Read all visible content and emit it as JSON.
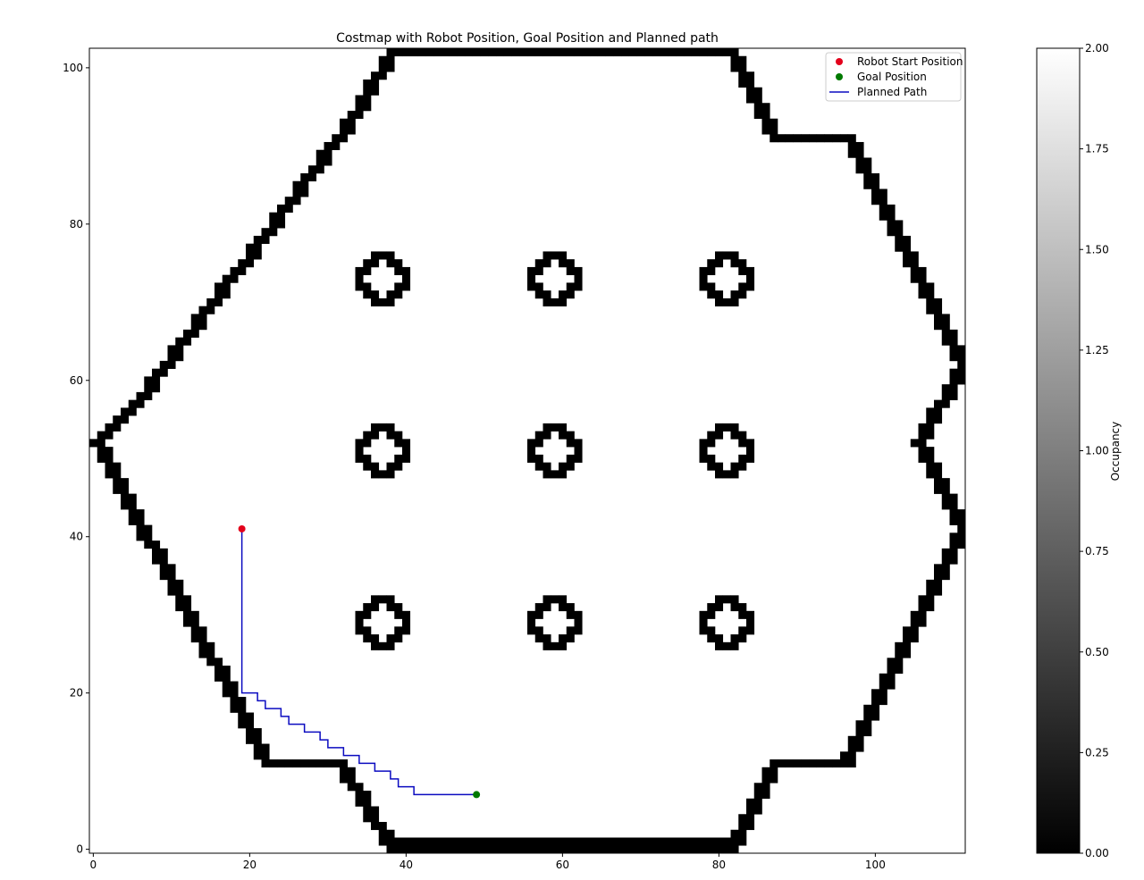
{
  "chart_data": {
    "type": "heatmap",
    "title": "Costmap with Robot Position, Goal Position and Planned path",
    "xlabel": "",
    "ylabel": "",
    "xlim": [
      -0.5,
      111.5
    ],
    "ylim": [
      -0.5,
      102.5
    ],
    "xticks": [
      0,
      20,
      40,
      60,
      80,
      100
    ],
    "yticks": [
      0,
      20,
      40,
      60,
      80,
      100
    ],
    "grid": false,
    "colormap": "gray",
    "obstacle_value": 0,
    "free_value": 2,
    "obstacle_color": "#000000",
    "free_color": "#ffffff",
    "colorbar": {
      "label": "Occupancy",
      "range": [
        0,
        2
      ],
      "ticks": [
        "0.00",
        "0.25",
        "0.50",
        "0.75",
        "1.00",
        "1.25",
        "1.50",
        "1.75",
        "2.00"
      ]
    },
    "boundary_polygon": [
      [
        0,
        52
      ],
      [
        5,
        57
      ],
      [
        31,
        91
      ],
      [
        38,
        102
      ],
      [
        81,
        102
      ],
      [
        87,
        91
      ],
      [
        96,
        91
      ],
      [
        111,
        62
      ],
      [
        105,
        52
      ],
      [
        111,
        41
      ],
      [
        96,
        11
      ],
      [
        87,
        11
      ],
      [
        81,
        0
      ],
      [
        38,
        0
      ],
      [
        31,
        11
      ],
      [
        22,
        11
      ],
      [
        0,
        52
      ]
    ],
    "obstacles": [
      {
        "cx": 37,
        "cy": 73
      },
      {
        "cx": 59,
        "cy": 73
      },
      {
        "cx": 81,
        "cy": 73
      },
      {
        "cx": 37,
        "cy": 51
      },
      {
        "cx": 59,
        "cy": 51
      },
      {
        "cx": 81,
        "cy": 51
      },
      {
        "cx": 37,
        "cy": 29
      },
      {
        "cx": 59,
        "cy": 29
      },
      {
        "cx": 81,
        "cy": 29
      }
    ],
    "series": [
      {
        "name": "Robot Start Position",
        "type": "point",
        "color": "#e3001b",
        "x": 19,
        "y": 41
      },
      {
        "name": "Goal Position",
        "type": "point",
        "color": "#007a00",
        "x": 49,
        "y": 7
      },
      {
        "name": "Planned Path",
        "type": "line",
        "color": "#0b0bc0",
        "points": [
          [
            19,
            41
          ],
          [
            19,
            20
          ],
          [
            21,
            20
          ],
          [
            21,
            19
          ],
          [
            22,
            19
          ],
          [
            22,
            18
          ],
          [
            24,
            18
          ],
          [
            24,
            17
          ],
          [
            25,
            17
          ],
          [
            25,
            16
          ],
          [
            27,
            16
          ],
          [
            27,
            15
          ],
          [
            29,
            15
          ],
          [
            29,
            14
          ],
          [
            30,
            14
          ],
          [
            30,
            13
          ],
          [
            32,
            13
          ],
          [
            32,
            12
          ],
          [
            34,
            12
          ],
          [
            34,
            11
          ],
          [
            36,
            11
          ],
          [
            36,
            10
          ],
          [
            38,
            10
          ],
          [
            38,
            9
          ],
          [
            39,
            9
          ],
          [
            39,
            8
          ],
          [
            41,
            8
          ],
          [
            41,
            7
          ],
          [
            49,
            7
          ]
        ]
      }
    ],
    "legend_position": "top-right"
  }
}
